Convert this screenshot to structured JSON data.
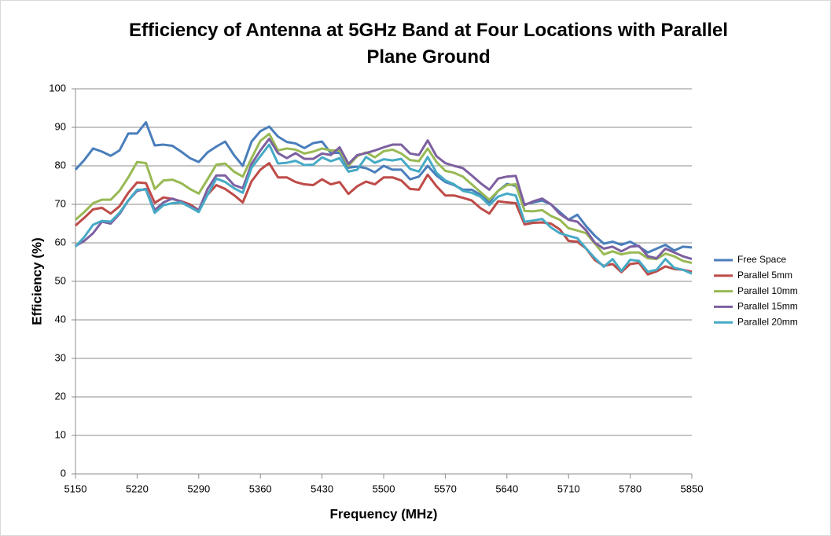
{
  "chart_data": {
    "type": "line",
    "title": "Efficiency of Antenna at 5GHz Band at Four Locations with Parallel Plane Ground",
    "xlabel": "Frequency  (MHz)",
    "ylabel": "Efficiency (%)",
    "x": [
      5150,
      5160,
      5170,
      5180,
      5190,
      5200,
      5210,
      5220,
      5230,
      5240,
      5250,
      5260,
      5270,
      5280,
      5290,
      5300,
      5310,
      5320,
      5330,
      5340,
      5350,
      5360,
      5370,
      5380,
      5390,
      5400,
      5410,
      5420,
      5430,
      5440,
      5450,
      5460,
      5470,
      5480,
      5490,
      5500,
      5510,
      5520,
      5530,
      5540,
      5550,
      5560,
      5570,
      5580,
      5590,
      5600,
      5610,
      5620,
      5630,
      5640,
      5650,
      5660,
      5670,
      5680,
      5690,
      5700,
      5710,
      5720,
      5730,
      5740,
      5750,
      5760,
      5770,
      5780,
      5790,
      5800,
      5810,
      5820,
      5830,
      5840,
      5850
    ],
    "xlim": [
      5150,
      5850
    ],
    "xticks": [
      5150,
      5220,
      5290,
      5360,
      5430,
      5500,
      5570,
      5640,
      5710,
      5780,
      5850
    ],
    "ylim": [
      0,
      100
    ],
    "yticks": [
      0,
      10,
      20,
      30,
      40,
      50,
      60,
      70,
      80,
      90,
      100
    ],
    "grid": true,
    "legend": "right",
    "series": [
      {
        "name": "Free Space",
        "color": "#4a7ebb",
        "values": [
          79,
          81.5,
          84.5,
          83.7,
          82.6,
          84,
          88.4,
          88.4,
          91.3,
          85.3,
          85.5,
          85.2,
          83.7,
          82,
          81,
          83.5,
          85,
          86.3,
          82.8,
          80,
          86.3,
          89,
          90.2,
          87.6,
          86.2,
          85.8,
          84.6,
          85.9,
          86.3,
          83.3,
          83.4,
          79.5,
          79.8,
          79.4,
          78.3,
          80,
          79,
          79,
          76.5,
          77.2,
          80,
          77.5,
          75.8,
          75,
          73.8,
          73.8,
          72.5,
          70.5,
          73.5,
          75.3,
          74.8,
          70,
          70.5,
          71,
          70,
          68,
          66,
          67.3,
          64.3,
          61.8,
          59.8,
          60.3,
          59.5,
          60.3,
          59,
          57.5,
          58.5,
          59.5,
          58,
          59,
          58.8
        ]
      },
      {
        "name": "Parallel 5mm",
        "color": "#be4b48",
        "values": [
          64.5,
          66.5,
          68.7,
          69.1,
          67.6,
          69.5,
          73,
          75.7,
          75.5,
          70.4,
          71.8,
          71.4,
          70.8,
          70,
          68.5,
          72.5,
          75,
          74,
          72.4,
          70.5,
          76,
          79,
          80.7,
          77,
          77,
          75.8,
          75.2,
          75,
          76.5,
          75.2,
          75.8,
          72.7,
          74.7,
          75.9,
          75.2,
          77,
          77,
          76.2,
          74,
          73.8,
          77.7,
          74.7,
          72.3,
          72.3,
          71.7,
          71,
          69,
          67.6,
          70.8,
          70.5,
          70.3,
          64.8,
          65.2,
          65.3,
          65,
          63.5,
          60.5,
          60.3,
          58.5,
          55.5,
          54,
          54.5,
          52.4,
          54.5,
          54.8,
          51.8,
          52.6,
          53.9,
          53.2,
          53,
          52.5
        ]
      },
      {
        "name": "Parallel 10mm",
        "color": "#98b954",
        "values": [
          66,
          68,
          70.3,
          71.2,
          71.2,
          73.5,
          77,
          81,
          80.7,
          74,
          76.2,
          76.4,
          75.5,
          74,
          72.8,
          76.5,
          80.3,
          80.6,
          78.5,
          77.2,
          82,
          86.5,
          88.3,
          84,
          84.5,
          84.2,
          83.2,
          83.7,
          84.5,
          84,
          84,
          80,
          82.5,
          83.5,
          82.2,
          83.8,
          84.2,
          83.2,
          81.5,
          81.2,
          84.5,
          81,
          78.7,
          78.2,
          77.2,
          75.2,
          73.2,
          71.2,
          73.5,
          75,
          75.2,
          68.3,
          68.2,
          68.5,
          67,
          66,
          63.8,
          63.2,
          62.5,
          59.8,
          57,
          57.8,
          57,
          57.5,
          57.5,
          56,
          55.8,
          57.2,
          56.5,
          55.3,
          54.8
        ]
      },
      {
        "name": "Parallel 15mm",
        "color": "#7d60a0",
        "values": [
          59.2,
          60.5,
          62.5,
          65.5,
          65,
          67.5,
          71,
          73.5,
          74,
          68.5,
          70.5,
          71.5,
          70.7,
          69.5,
          68.5,
          74,
          77.5,
          77.5,
          75,
          74.2,
          80.5,
          84,
          87,
          83.3,
          82,
          83.3,
          81.8,
          81.8,
          83.2,
          82.8,
          84.8,
          80.5,
          82.8,
          83.3,
          84,
          84.8,
          85.5,
          85.5,
          83.2,
          82.8,
          86.6,
          82.5,
          80.7,
          80,
          79.4,
          77.5,
          75.5,
          73.8,
          76.7,
          77.2,
          77.4,
          69.8,
          70.8,
          71.5,
          70,
          67.5,
          66,
          65.5,
          63.2,
          60,
          58.5,
          59,
          57.8,
          59,
          59.2,
          56.5,
          56,
          58.5,
          57.5,
          56.5,
          55.8
        ]
      },
      {
        "name": "Parallel 20mm",
        "color": "#46aac5",
        "values": [
          59,
          61.5,
          64.7,
          65.7,
          65.5,
          67.8,
          71,
          73.8,
          73.8,
          67.8,
          69.8,
          70.3,
          70.5,
          69.3,
          68,
          72.5,
          76.7,
          75.8,
          74.2,
          73,
          79.5,
          82.5,
          85.5,
          80.6,
          80.8,
          81.3,
          80.2,
          80.3,
          82.2,
          81.2,
          82,
          78.5,
          79,
          82.3,
          80.8,
          81.7,
          81.4,
          81.8,
          79.2,
          78.5,
          82.3,
          78.2,
          76.2,
          75.2,
          73.5,
          73,
          72,
          69.8,
          72,
          72.8,
          72.3,
          65.5,
          65.8,
          66.2,
          64,
          62.5,
          61.8,
          61.2,
          58.5,
          56,
          53.8,
          55.8,
          52.7,
          55.6,
          55.3,
          52.5,
          53,
          55.8,
          53.5,
          53,
          52
        ]
      }
    ]
  }
}
